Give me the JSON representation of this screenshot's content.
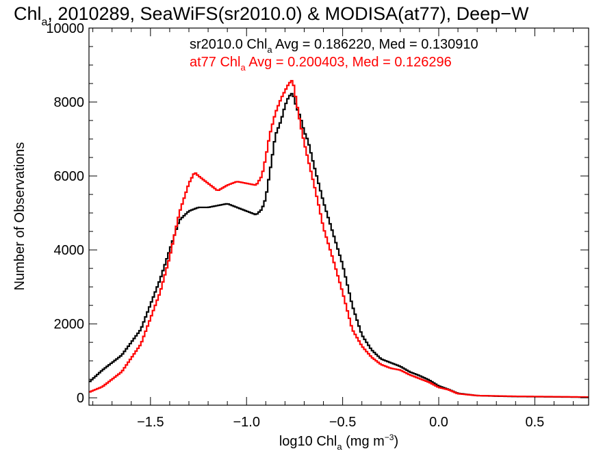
{
  "chart_data": {
    "type": "line",
    "title": {
      "pre": "Chl",
      "sub": "a",
      "post": ", 2010289, SeaWiFS(sr2010.0) & MODISA(at77), Deep−W"
    },
    "xlabel": {
      "pre": "log10 Chl",
      "sub": "a",
      "post": " (mg m",
      "sup": "−3",
      "end": ")"
    },
    "ylabel": "Number of Observations",
    "xlim": [
      -1.82,
      0.78
    ],
    "ylim": [
      -200,
      10000
    ],
    "xticks": [
      -1.5,
      -1.0,
      -0.5,
      0.0,
      0.5
    ],
    "xtick_labels": [
      "−1.5",
      "−1.0",
      "−0.5",
      "0.0",
      "0.5"
    ],
    "yticks": [
      0,
      2000,
      4000,
      6000,
      8000,
      10000
    ],
    "ytick_labels": [
      "0",
      "2000",
      "4000",
      "6000",
      "8000",
      "10000"
    ],
    "annotations": [
      {
        "pre": "sr2010.0 Chl",
        "sub": "a",
        "post": " Avg = 0.186220, Med = 0.130910",
        "color": "#000000"
      },
      {
        "pre": "at77 Chl",
        "sub": "a",
        "post": " Avg = 0.200403, Med = 0.126296",
        "color": "#ff0000"
      }
    ],
    "series": [
      {
        "color": "#000000",
        "x": [
          -1.82,
          -1.75,
          -1.65,
          -1.55,
          -1.45,
          -1.4,
          -1.35,
          -1.3,
          -1.25,
          -1.2,
          -1.15,
          -1.1,
          -1.05,
          -1.0,
          -0.95,
          -0.92,
          -0.9,
          -0.87,
          -0.85,
          -0.82,
          -0.8,
          -0.78,
          -0.76,
          -0.74,
          -0.72,
          -0.7,
          -0.68,
          -0.65,
          -0.62,
          -0.6,
          -0.55,
          -0.5,
          -0.45,
          -0.4,
          -0.35,
          -0.3,
          -0.25,
          -0.2,
          -0.15,
          -0.1,
          -0.05,
          0.0,
          0.05,
          0.1,
          0.2,
          0.3,
          0.4,
          0.5,
          0.6,
          0.7,
          0.78
        ],
        "y": [
          420,
          750,
          1150,
          1850,
          3200,
          4000,
          4800,
          5050,
          5150,
          5150,
          5200,
          5250,
          5150,
          5050,
          4950,
          5100,
          5400,
          6400,
          7100,
          7500,
          7900,
          8150,
          8250,
          7850,
          7600,
          7200,
          6950,
          6300,
          5700,
          5300,
          4450,
          3600,
          2500,
          1700,
          1300,
          1050,
          950,
          850,
          700,
          600,
          480,
          320,
          230,
          120,
          60,
          45,
          35,
          30,
          25,
          20,
          15
        ]
      },
      {
        "color": "#ff0000",
        "x": [
          -1.82,
          -1.75,
          -1.65,
          -1.55,
          -1.45,
          -1.4,
          -1.35,
          -1.3,
          -1.27,
          -1.25,
          -1.2,
          -1.15,
          -1.1,
          -1.05,
          -1.0,
          -0.95,
          -0.92,
          -0.9,
          -0.88,
          -0.85,
          -0.82,
          -0.8,
          -0.78,
          -0.76,
          -0.74,
          -0.72,
          -0.7,
          -0.68,
          -0.65,
          -0.62,
          -0.6,
          -0.55,
          -0.5,
          -0.45,
          -0.4,
          -0.35,
          -0.3,
          -0.25,
          -0.2,
          -0.15,
          -0.1,
          -0.05,
          0.0,
          0.05,
          0.1,
          0.2,
          0.3,
          0.4,
          0.5,
          0.6,
          0.7,
          0.78
        ],
        "y": [
          150,
          300,
          700,
          1450,
          2850,
          3800,
          5000,
          5800,
          6100,
          6000,
          5800,
          5600,
          5750,
          5850,
          5800,
          5750,
          6000,
          6500,
          7100,
          7700,
          8100,
          8300,
          8500,
          8600,
          8000,
          7400,
          6900,
          6450,
          5800,
          5100,
          4600,
          3750,
          2850,
          1850,
          1400,
          1100,
          900,
          800,
          750,
          620,
          520,
          420,
          280,
          220,
          110,
          60,
          50,
          40,
          35,
          30,
          25,
          20
        ]
      }
    ]
  }
}
